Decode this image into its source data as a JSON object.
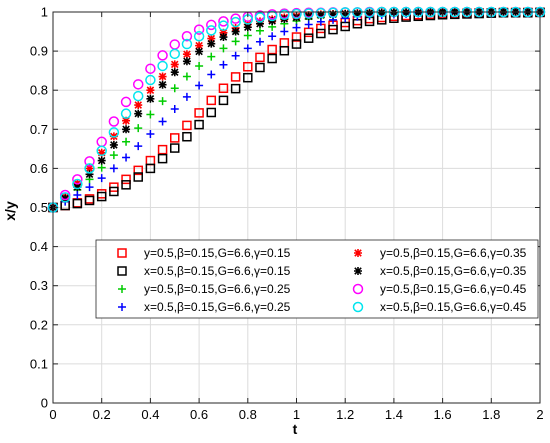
{
  "chart_data": {
    "type": "scatter",
    "xlabel": "t",
    "ylabel": "x/y",
    "xlim": [
      0,
      2
    ],
    "ylim": [
      0,
      1
    ],
    "xticks": [
      0,
      0.2,
      0.4,
      0.6,
      0.8,
      1,
      1.2,
      1.4,
      1.6,
      1.8,
      2
    ],
    "xtick_labels": [
      "0",
      "0.2",
      "0.4",
      "0.6",
      "0.8",
      "1",
      "1.2",
      "1.4",
      "1.6",
      "1.8",
      "2"
    ],
    "yticks": [
      0,
      0.1,
      0.2,
      0.3,
      0.4,
      0.5,
      0.6,
      0.7,
      0.8,
      0.9,
      1
    ],
    "ytick_labels": [
      "0",
      "0.1",
      "0.2",
      "0.3",
      "0.4",
      "0.5",
      "0.6",
      "0.7",
      "0.8",
      "0.9",
      "1"
    ],
    "grid": true,
    "legend_position": "lower-right",
    "x": [
      0,
      0.05,
      0.1,
      0.15,
      0.2,
      0.25,
      0.3,
      0.35,
      0.4,
      0.45,
      0.5,
      0.55,
      0.6,
      0.65,
      0.7,
      0.75,
      0.8,
      0.85,
      0.9,
      0.95,
      1,
      1.05,
      1.1,
      1.15,
      1.2,
      1.25,
      1.3,
      1.35,
      1.4,
      1.45,
      1.5,
      1.55,
      1.6,
      1.65,
      1.7,
      1.75,
      1.8,
      1.85,
      1.9,
      1.95,
      2
    ],
    "series": [
      {
        "name": "y=0.5,β=0.15,G=6.6,γ=0.15",
        "marker": "square",
        "color": "#ff0000",
        "values": [
          0.5,
          0.505,
          0.512,
          0.522,
          0.535,
          0.552,
          0.572,
          0.595,
          0.62,
          0.648,
          0.678,
          0.71,
          0.742,
          0.774,
          0.805,
          0.834,
          0.86,
          0.884,
          0.904,
          0.921,
          0.936,
          0.948,
          0.958,
          0.966,
          0.973,
          0.978,
          0.983,
          0.986,
          0.989,
          0.991,
          0.993,
          0.994,
          0.996,
          0.996,
          0.997,
          0.998,
          0.998,
          0.999,
          0.999,
          0.999,
          0.999
        ]
      },
      {
        "name": "x=0.5,β=0.15,G=6.6,γ=0.15",
        "marker": "square",
        "color": "#000000",
        "values": [
          0.5,
          0.505,
          0.51,
          0.518,
          0.528,
          0.541,
          0.558,
          0.578,
          0.6,
          0.625,
          0.652,
          0.681,
          0.712,
          0.743,
          0.774,
          0.804,
          0.832,
          0.858,
          0.881,
          0.901,
          0.918,
          0.933,
          0.945,
          0.955,
          0.963,
          0.97,
          0.976,
          0.98,
          0.984,
          0.987,
          0.989,
          0.991,
          0.993,
          0.994,
          0.995,
          0.996,
          0.997,
          0.998,
          0.998,
          0.998,
          0.999
        ]
      },
      {
        "name": "y=0.5,β=0.15,G=6.6,γ=0.25",
        "marker": "plus",
        "color": "#00cc00",
        "values": [
          0.5,
          0.52,
          0.545,
          0.572,
          0.602,
          0.634,
          0.668,
          0.703,
          0.738,
          0.772,
          0.805,
          0.835,
          0.862,
          0.886,
          0.907,
          0.925,
          0.94,
          0.952,
          0.962,
          0.97,
          0.977,
          0.982,
          0.986,
          0.989,
          0.991,
          0.993,
          0.995,
          0.996,
          0.997,
          0.998,
          0.998,
          0.999,
          0.999,
          0.999,
          0.999,
          1,
          1,
          1,
          1,
          1,
          1
        ]
      },
      {
        "name": "x=0.5,β=0.15,G=6.6,γ=0.25",
        "marker": "plus",
        "color": "#0000ff",
        "values": [
          0.5,
          0.515,
          0.532,
          0.552,
          0.575,
          0.6,
          0.628,
          0.657,
          0.688,
          0.72,
          0.752,
          0.783,
          0.812,
          0.84,
          0.865,
          0.888,
          0.907,
          0.924,
          0.938,
          0.95,
          0.96,
          0.968,
          0.975,
          0.98,
          0.984,
          0.988,
          0.99,
          0.992,
          0.994,
          0.995,
          0.996,
          0.997,
          0.998,
          0.998,
          0.999,
          0.999,
          0.999,
          0.999,
          1,
          1,
          1
        ]
      },
      {
        "name": "y=0.5,β=0.15,G=6.6,γ=0.35",
        "marker": "asterisk",
        "color": "#ff0000",
        "values": [
          0.5,
          0.527,
          0.562,
          0.6,
          0.64,
          0.682,
          0.722,
          0.762,
          0.8,
          0.835,
          0.866,
          0.892,
          0.914,
          0.932,
          0.947,
          0.959,
          0.968,
          0.976,
          0.981,
          0.986,
          0.989,
          0.992,
          0.994,
          0.995,
          0.996,
          0.997,
          0.998,
          0.999,
          0.999,
          0.999,
          0.999,
          1,
          1,
          1,
          1,
          1,
          1,
          1,
          1,
          1,
          1
        ]
      },
      {
        "name": "x=0.5,β=0.15,G=6.6,γ=0.35",
        "marker": "asterisk",
        "color": "#000000",
        "values": [
          0.5,
          0.523,
          0.552,
          0.585,
          0.62,
          0.66,
          0.7,
          0.74,
          0.778,
          0.814,
          0.846,
          0.874,
          0.899,
          0.919,
          0.936,
          0.95,
          0.961,
          0.97,
          0.977,
          0.982,
          0.986,
          0.989,
          0.992,
          0.994,
          0.995,
          0.996,
          0.997,
          0.998,
          0.999,
          0.999,
          0.999,
          1,
          1,
          1,
          1,
          1,
          1,
          1,
          1,
          1,
          1
        ]
      },
      {
        "name": "y=0.5,β=0.15,G=6.6,γ=0.45",
        "marker": "circle",
        "color": "#ff00ff",
        "values": [
          0.5,
          0.532,
          0.572,
          0.618,
          0.668,
          0.72,
          0.77,
          0.815,
          0.855,
          0.889,
          0.917,
          0.938,
          0.955,
          0.967,
          0.976,
          0.983,
          0.988,
          0.991,
          0.994,
          0.996,
          0.997,
          0.998,
          0.998,
          0.999,
          0.999,
          0.999,
          1,
          1,
          1,
          1,
          1,
          1,
          1,
          1,
          1,
          1,
          1,
          1,
          1,
          1,
          1
        ]
      },
      {
        "name": "x=0.5,β=0.15,G=6.6,γ=0.45",
        "marker": "circle",
        "color": "#00e5ee",
        "values": [
          0.5,
          0.526,
          0.56,
          0.6,
          0.645,
          0.692,
          0.74,
          0.785,
          0.826,
          0.862,
          0.893,
          0.918,
          0.938,
          0.953,
          0.965,
          0.974,
          0.981,
          0.986,
          0.99,
          0.993,
          0.995,
          0.996,
          0.997,
          0.998,
          0.999,
          0.999,
          0.999,
          1,
          1,
          1,
          1,
          1,
          1,
          1,
          1,
          1,
          1,
          1,
          1,
          1,
          1
        ]
      }
    ]
  }
}
